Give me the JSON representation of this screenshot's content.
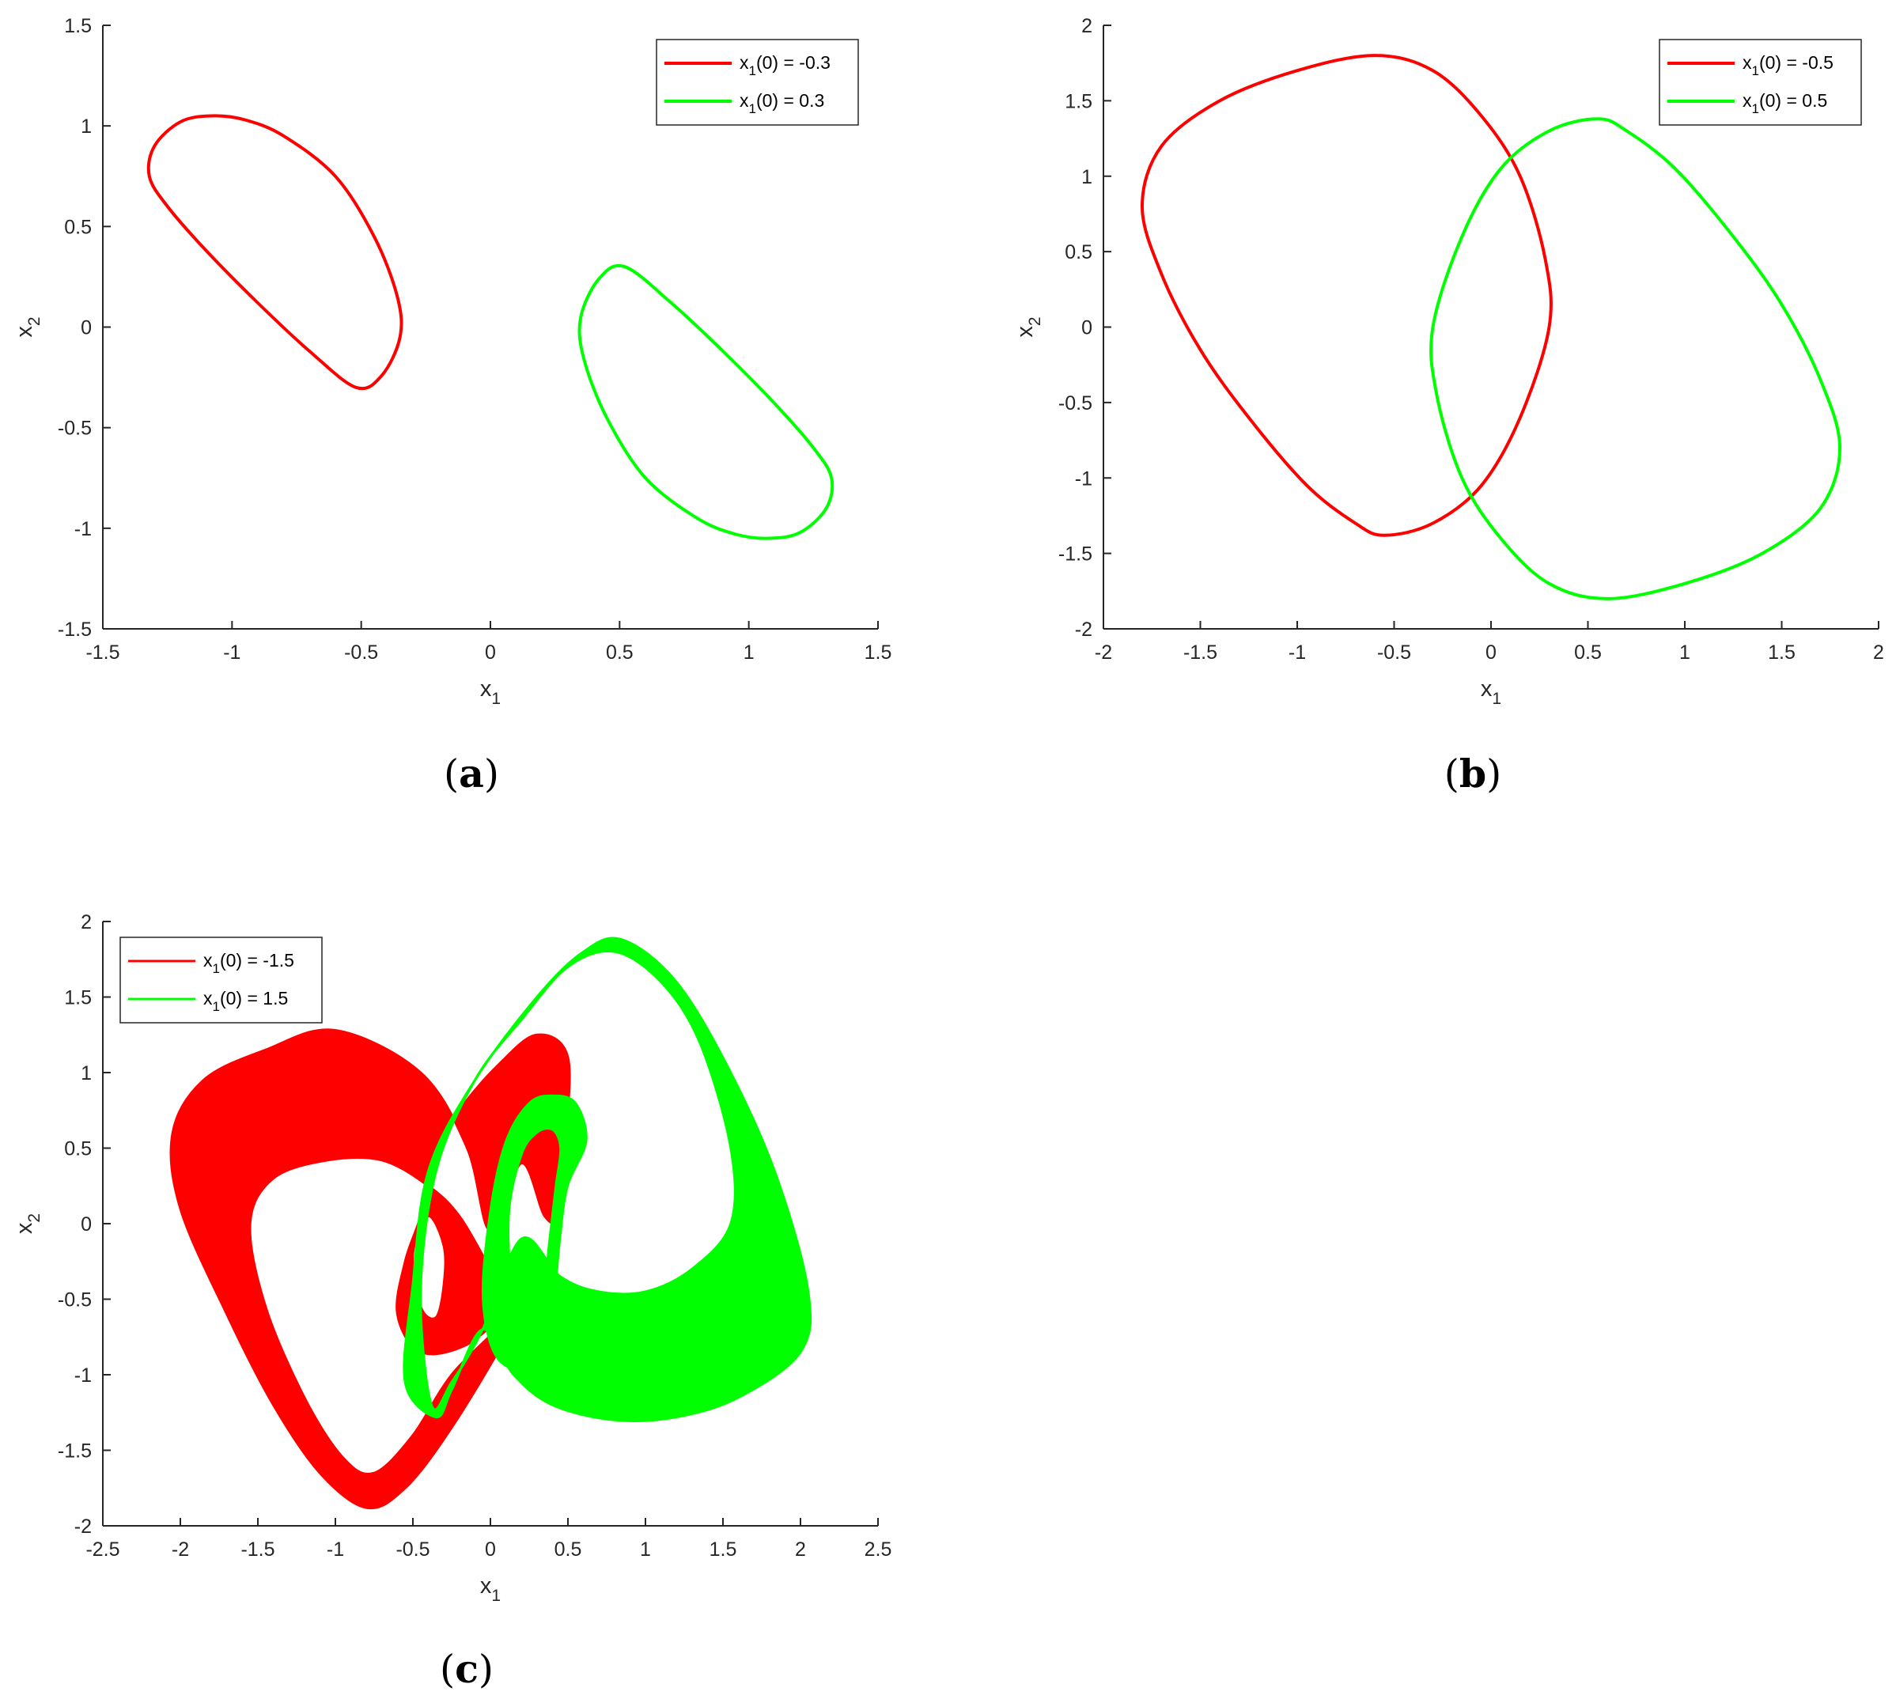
{
  "panels": [
    {
      "label": "(a)",
      "letter": "a"
    },
    {
      "label": "(b)",
      "letter": "b"
    },
    {
      "label": "(c)",
      "letter": "c"
    }
  ],
  "chart_data": [
    {
      "type": "line",
      "title": "",
      "xlabel": "x1",
      "ylabel": "x2",
      "xlim": [
        -1.5,
        1.5
      ],
      "ylim": [
        -1.5,
        1.5
      ],
      "xticks": [
        -1.5,
        -1,
        -0.5,
        0,
        0.5,
        1,
        1.5
      ],
      "yticks": [
        -1.5,
        -1,
        -0.5,
        0,
        0.5,
        1,
        1.5
      ],
      "xtick_labels": [
        "-1.5",
        "-1",
        "-0.5",
        "0",
        "0.5",
        "1",
        "1.5"
      ],
      "ytick_labels": [
        "-1.5",
        "-1",
        "-0.5",
        "0",
        "0.5",
        "1",
        "1.5"
      ],
      "legend_position": "top-right",
      "series": [
        {
          "name": "x1(0) = -0.3",
          "legend": {
            "pre": "x",
            "sub": "1",
            "post": "(0) = -0.3"
          },
          "color": "#ff0000",
          "points": [
            [
              -1.08,
              1.05
            ],
            [
              -1.2,
              1.02
            ],
            [
              -1.3,
              0.9
            ],
            [
              -1.32,
              0.75
            ],
            [
              -1.25,
              0.6
            ],
            [
              -1.1,
              0.38
            ],
            [
              -0.9,
              0.12
            ],
            [
              -0.7,
              -0.12
            ],
            [
              -0.52,
              -0.3
            ],
            [
              -0.42,
              -0.24
            ],
            [
              -0.35,
              -0.05
            ],
            [
              -0.36,
              0.15
            ],
            [
              -0.45,
              0.45
            ],
            [
              -0.6,
              0.75
            ],
            [
              -0.8,
              0.95
            ],
            [
              -0.95,
              1.03
            ],
            [
              -1.08,
              1.05
            ]
          ]
        },
        {
          "name": "x1(0) = 0.3",
          "legend": {
            "pre": "x",
            "sub": "1",
            "post": "(0) = 0.3"
          },
          "color": "#00ff00",
          "points": [
            [
              1.08,
              -1.05
            ],
            [
              1.2,
              -1.02
            ],
            [
              1.3,
              -0.9
            ],
            [
              1.32,
              -0.75
            ],
            [
              1.25,
              -0.6
            ],
            [
              1.1,
              -0.38
            ],
            [
              0.9,
              -0.12
            ],
            [
              0.7,
              0.12
            ],
            [
              0.52,
              0.3
            ],
            [
              0.42,
              0.24
            ],
            [
              0.35,
              0.05
            ],
            [
              0.36,
              -0.15
            ],
            [
              0.45,
              -0.45
            ],
            [
              0.6,
              -0.75
            ],
            [
              0.8,
              -0.95
            ],
            [
              0.95,
              -1.03
            ],
            [
              1.08,
              -1.05
            ]
          ]
        }
      ]
    },
    {
      "type": "line",
      "title": "",
      "xlabel": "x1",
      "ylabel": "x2",
      "xlim": [
        -2,
        2
      ],
      "ylim": [
        -2,
        2
      ],
      "xticks": [
        -2,
        -1.5,
        -1,
        -0.5,
        0,
        0.5,
        1,
        1.5,
        2
      ],
      "yticks": [
        -2,
        -1.5,
        -1,
        -0.5,
        0,
        0.5,
        1,
        1.5,
        2
      ],
      "xtick_labels": [
        "-2",
        "-1.5",
        "-1",
        "-0.5",
        "0",
        "0.5",
        "1",
        "1.5",
        "2"
      ],
      "ytick_labels": [
        "-2",
        "-1.5",
        "-1",
        "-0.5",
        "0",
        "0.5",
        "1",
        "1.5",
        "2"
      ],
      "legend_position": "top-right",
      "series": [
        {
          "name": "x1(0) = -0.5",
          "legend": {
            "pre": "x",
            "sub": "1",
            "post": "(0) = -0.5"
          },
          "color": "#ff0000",
          "points": [
            [
              -0.6,
              1.8
            ],
            [
              -1.0,
              1.7
            ],
            [
              -1.4,
              1.5
            ],
            [
              -1.7,
              1.2
            ],
            [
              -1.8,
              0.8
            ],
            [
              -1.7,
              0.35
            ],
            [
              -1.5,
              -0.15
            ],
            [
              -1.25,
              -0.6
            ],
            [
              -0.95,
              -1.05
            ],
            [
              -0.7,
              -1.3
            ],
            [
              -0.55,
              -1.38
            ],
            [
              -0.3,
              -1.3
            ],
            [
              -0.05,
              -1.05
            ],
            [
              0.15,
              -0.6
            ],
            [
              0.3,
              0.0
            ],
            [
              0.28,
              0.45
            ],
            [
              0.15,
              1.0
            ],
            [
              -0.05,
              1.4
            ],
            [
              -0.3,
              1.7
            ],
            [
              -0.6,
              1.8
            ]
          ]
        },
        {
          "name": "x1(0) = 0.5",
          "legend": {
            "pre": "x",
            "sub": "1",
            "post": "(0) = 0.5"
          },
          "color": "#00ff00",
          "points": [
            [
              0.6,
              -1.8
            ],
            [
              1.0,
              -1.7
            ],
            [
              1.4,
              -1.5
            ],
            [
              1.7,
              -1.2
            ],
            [
              1.8,
              -0.8
            ],
            [
              1.7,
              -0.35
            ],
            [
              1.5,
              0.15
            ],
            [
              1.25,
              0.6
            ],
            [
              0.95,
              1.05
            ],
            [
              0.7,
              1.3
            ],
            [
              0.55,
              1.38
            ],
            [
              0.3,
              1.3
            ],
            [
              0.05,
              1.05
            ],
            [
              -0.15,
              0.6
            ],
            [
              -0.3,
              0.0
            ],
            [
              -0.28,
              -0.45
            ],
            [
              -0.15,
              -1.0
            ],
            [
              0.05,
              -1.4
            ],
            [
              0.3,
              -1.7
            ],
            [
              0.6,
              -1.8
            ]
          ]
        }
      ]
    },
    {
      "type": "area",
      "title": "",
      "xlabel": "x1",
      "ylabel": "x2",
      "xlim": [
        -2.5,
        2.5
      ],
      "ylim": [
        -2,
        2
      ],
      "xticks": [
        -2.5,
        -2,
        -1.5,
        -1,
        -0.5,
        0,
        0.5,
        1,
        1.5,
        2,
        2.5
      ],
      "yticks": [
        -2,
        -1.5,
        -1,
        -0.5,
        0,
        0.5,
        1,
        1.5,
        2
      ],
      "xtick_labels": [
        "-2.5",
        "-2",
        "-1.5",
        "-1",
        "-0.5",
        "0",
        "0.5",
        "1",
        "1.5",
        "2",
        "2.5"
      ],
      "ytick_labels": [
        "-2",
        "-1.5",
        "-1",
        "-0.5",
        "0",
        "0.5",
        "1",
        "1.5",
        "2"
      ],
      "legend_position": "top-left",
      "series": [
        {
          "name": "x1(0) = -1.5",
          "legend": {
            "pre": "x",
            "sub": "1",
            "post": "(0) = -1.5"
          },
          "color": "#ff0000",
          "outer": [
            [
              -1.0,
              1.28
            ],
            [
              -1.45,
              1.15
            ],
            [
              -1.85,
              0.95
            ],
            [
              -2.05,
              0.6
            ],
            [
              -2.0,
              0.1
            ],
            [
              -1.7,
              -0.6
            ],
            [
              -1.4,
              -1.2
            ],
            [
              -1.1,
              -1.65
            ],
            [
              -0.8,
              -1.88
            ],
            [
              -0.55,
              -1.75
            ],
            [
              -0.25,
              -1.35
            ],
            [
              0.1,
              -0.75
            ],
            [
              0.15,
              -0.55
            ],
            [
              -0.15,
              -0.8
            ],
            [
              -0.45,
              -0.85
            ],
            [
              -0.6,
              -0.6
            ],
            [
              -0.55,
              -0.25
            ],
            [
              -0.45,
              0.05
            ],
            [
              -0.35,
              0.45
            ],
            [
              -0.2,
              0.75
            ],
            [
              0.05,
              1.05
            ],
            [
              0.3,
              1.25
            ],
            [
              0.5,
              1.1
            ],
            [
              0.48,
              0.5
            ],
            [
              0.45,
              0.05
            ],
            [
              0.35,
              0.05
            ],
            [
              0.2,
              0.4
            ],
            [
              0.0,
              -0.05
            ],
            [
              -0.15,
              0.5
            ],
            [
              -0.45,
              1.0
            ],
            [
              -1.0,
              1.28
            ]
          ],
          "hole": [
            [
              -1.05,
              0.42
            ],
            [
              -1.4,
              0.3
            ],
            [
              -1.55,
              0.0
            ],
            [
              -1.45,
              -0.55
            ],
            [
              -1.2,
              -1.15
            ],
            [
              -0.95,
              -1.55
            ],
            [
              -0.75,
              -1.65
            ],
            [
              -0.5,
              -1.4
            ],
            [
              -0.25,
              -1.0
            ],
            [
              0.15,
              -0.55
            ],
            [
              0.0,
              -0.3
            ],
            [
              -0.2,
              0.05
            ],
            [
              -0.4,
              0.25
            ],
            [
              -0.7,
              0.42
            ],
            [
              -1.05,
              0.42
            ]
          ],
          "hole2": [
            [
              -0.4,
              0.05
            ],
            [
              -0.5,
              -0.2
            ],
            [
              -0.45,
              -0.55
            ],
            [
              -0.35,
              -0.62
            ],
            [
              -0.3,
              -0.4
            ],
            [
              -0.3,
              -0.15
            ],
            [
              -0.4,
              0.05
            ]
          ]
        },
        {
          "name": "x1(0) = 1.5",
          "legend": {
            "pre": "x",
            "sub": "1",
            "post": "(0) = 1.5"
          },
          "color": "#00ff00",
          "outer": [
            [
              0.85,
              1.88
            ],
            [
              1.2,
              1.6
            ],
            [
              1.55,
              1.0
            ],
            [
              1.85,
              0.3
            ],
            [
              2.05,
              -0.45
            ],
            [
              2.0,
              -0.85
            ],
            [
              1.6,
              -1.15
            ],
            [
              1.2,
              -1.28
            ],
            [
              0.8,
              -1.3
            ],
            [
              0.4,
              -1.2
            ],
            [
              0.15,
              -1.0
            ],
            [
              -0.05,
              -0.7
            ],
            [
              -0.25,
              -1.1
            ],
            [
              -0.35,
              -1.28
            ],
            [
              -0.55,
              -1.05
            ],
            [
              -0.5,
              -0.4
            ],
            [
              -0.4,
              0.35
            ],
            [
              -0.1,
              0.95
            ],
            [
              0.3,
              1.5
            ],
            [
              0.6,
              1.8
            ],
            [
              0.85,
              1.88
            ]
          ],
          "hole": [
            [
              0.8,
              1.8
            ],
            [
              0.5,
              1.7
            ],
            [
              0.2,
              1.35
            ],
            [
              -0.1,
              0.95
            ],
            [
              -0.35,
              0.35
            ],
            [
              -0.45,
              -0.45
            ],
            [
              -0.38,
              -1.2
            ],
            [
              -0.25,
              -1.05
            ],
            [
              -0.05,
              -0.7
            ],
            [
              0.2,
              -0.1
            ],
            [
              0.45,
              -0.35
            ],
            [
              0.7,
              -0.45
            ],
            [
              1.0,
              -0.45
            ],
            [
              1.3,
              -0.3
            ],
            [
              1.55,
              0.0
            ],
            [
              1.55,
              0.5
            ],
            [
              1.35,
              1.2
            ],
            [
              1.1,
              1.6
            ],
            [
              0.8,
              1.8
            ]
          ],
          "inner_ring_outer": [
            [
              0.4,
              0.85
            ],
            [
              0.55,
              0.8
            ],
            [
              0.62,
              0.55
            ],
            [
              0.5,
              0.25
            ],
            [
              0.45,
              -0.1
            ],
            [
              0.4,
              -0.6
            ],
            [
              0.3,
              -0.95
            ],
            [
              0.05,
              -0.9
            ],
            [
              -0.05,
              -0.5
            ],
            [
              0.0,
              0.1
            ],
            [
              0.1,
              0.55
            ],
            [
              0.25,
              0.8
            ],
            [
              0.4,
              0.85
            ]
          ],
          "inner_ring_hole": [
            [
              0.4,
              0.62
            ],
            [
              0.45,
              0.5
            ],
            [
              0.42,
              0.25
            ],
            [
              0.38,
              -0.1
            ],
            [
              0.33,
              -0.55
            ],
            [
              0.25,
              -0.75
            ],
            [
              0.15,
              -0.5
            ],
            [
              0.12,
              0.05
            ],
            [
              0.2,
              0.45
            ],
            [
              0.3,
              0.6
            ],
            [
              0.4,
              0.62
            ]
          ]
        }
      ]
    }
  ],
  "colors": {
    "series_red": "#ff0000",
    "series_green": "#00ff00",
    "axis": "#262626"
  }
}
